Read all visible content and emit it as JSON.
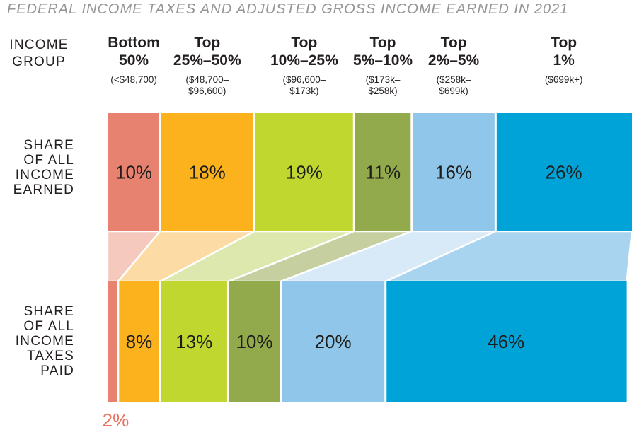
{
  "title": "FEDERAL INCOME TAXES AND ADJUSTED GROSS INCOME EARNED IN 2021",
  "header": {
    "income_group_label": "INCOME\nGROUP"
  },
  "rows": {
    "earned_label": "SHARE\nOF ALL\nINCOME\nEARNED",
    "paid_label": "SHARE\nOF ALL\nINCOME\nTAXES\nPAID"
  },
  "colors": {
    "title_gray": "#939598",
    "text_black": "#231F20",
    "value_label": "#1D1D1B",
    "outside_label_salmon": "#E8705F"
  },
  "chart_data": {
    "type": "sankey",
    "title": "FEDERAL INCOME TAXES AND ADJUSTED GROSS INCOME EARNED IN 2021",
    "rows": [
      "SHARE OF ALL INCOME EARNED",
      "SHARE OF ALL INCOME TAXES PAID"
    ],
    "totals": {
      "income_earned_pct": 100,
      "income_taxes_paid_pct": 100
    },
    "legend_position": "none",
    "groups": [
      {
        "name": "Bottom\n50%",
        "range": "(<$48,700)",
        "income_share_pct": 10,
        "tax_share_pct": 2,
        "color": "#E88270",
        "ribbon_color": "#F6C9BF"
      },
      {
        "name": "Top\n25%–50%",
        "range": "($48,700–\n$96,600)",
        "income_share_pct": 18,
        "tax_share_pct": 8,
        "color": "#FBB21C",
        "ribbon_color": "#FCDCA4"
      },
      {
        "name": "Top\n10%–25%",
        "range": "($96,600–\n$173k)",
        "income_share_pct": 19,
        "tax_share_pct": 13,
        "color": "#BFD72F",
        "ribbon_color": "#DDE8AE"
      },
      {
        "name": "Top\n5%–10%",
        "range": "($173k–\n$258k)",
        "income_share_pct": 11,
        "tax_share_pct": 10,
        "color": "#92A94C",
        "ribbon_color": "#C6CFA0"
      },
      {
        "name": "Top\n2%–5%",
        "range": "($258k–\n$699k)",
        "income_share_pct": 16,
        "tax_share_pct": 20,
        "color": "#8FC6EA",
        "ribbon_color": "#D8E9F7"
      },
      {
        "name": "Top\n1%",
        "range": "($699k+)",
        "income_share_pct": 26,
        "tax_share_pct": 46,
        "color": "#00A3D8",
        "ribbon_color": "#A9D4EF"
      }
    ]
  }
}
